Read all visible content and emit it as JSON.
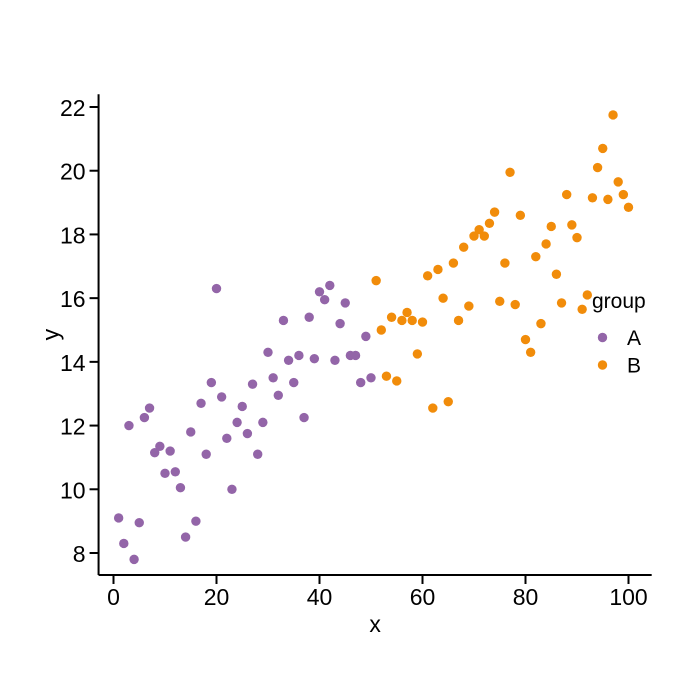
{
  "chart_data": {
    "type": "scatter",
    "title": "",
    "xlabel": "x",
    "ylabel": "y",
    "x_ticks": [
      0,
      20,
      40,
      60,
      80,
      100
    ],
    "y_ticks": [
      8,
      10,
      12,
      14,
      16,
      18,
      20,
      22
    ],
    "xlim": [
      -2.9,
      104.5
    ],
    "ylim": [
      7.31,
      22.4
    ],
    "grid": false,
    "background": "#ffffff",
    "axis_color": "#000000",
    "text_color": "#000000",
    "legend": {
      "title": "group",
      "position": "inside-right-middle"
    },
    "series": [
      {
        "name": "A",
        "color": "#9365a8",
        "points": [
          [
            1,
            9.1
          ],
          [
            2,
            8.3
          ],
          [
            3,
            12.0
          ],
          [
            4,
            7.8
          ],
          [
            5,
            8.95
          ],
          [
            6,
            12.25
          ],
          [
            7,
            12.55
          ],
          [
            8,
            11.15
          ],
          [
            9,
            11.35
          ],
          [
            10,
            10.5
          ],
          [
            11,
            11.2
          ],
          [
            12,
            10.55
          ],
          [
            13,
            10.05
          ],
          [
            14,
            8.5
          ],
          [
            15,
            11.8
          ],
          [
            16,
            9.0
          ],
          [
            17,
            12.7
          ],
          [
            18,
            11.1
          ],
          [
            19,
            13.35
          ],
          [
            20,
            16.3
          ],
          [
            21,
            12.9
          ],
          [
            22,
            11.6
          ],
          [
            23,
            10.0
          ],
          [
            24,
            12.1
          ],
          [
            25,
            12.6
          ],
          [
            26,
            11.75
          ],
          [
            27,
            13.3
          ],
          [
            28,
            11.1
          ],
          [
            29,
            12.1
          ],
          [
            30,
            14.3
          ],
          [
            31,
            13.5
          ],
          [
            32,
            12.95
          ],
          [
            33,
            15.3
          ],
          [
            34,
            14.05
          ],
          [
            35,
            13.35
          ],
          [
            36,
            14.2
          ],
          [
            37,
            12.25
          ],
          [
            38,
            15.4
          ],
          [
            39,
            14.1
          ],
          [
            40,
            16.2
          ],
          [
            41,
            15.95
          ],
          [
            42,
            16.4
          ],
          [
            43,
            14.05
          ],
          [
            44,
            15.2
          ],
          [
            45,
            15.85
          ],
          [
            46,
            14.2
          ],
          [
            47,
            14.2
          ],
          [
            48,
            13.35
          ],
          [
            49,
            14.8
          ],
          [
            50,
            13.5
          ]
        ]
      },
      {
        "name": "B",
        "color": "#f18c0a",
        "points": [
          [
            51,
            16.55
          ],
          [
            52,
            15.0
          ],
          [
            53,
            13.55
          ],
          [
            54,
            15.4
          ],
          [
            55,
            13.4
          ],
          [
            56,
            15.3
          ],
          [
            57,
            15.55
          ],
          [
            58,
            15.3
          ],
          [
            59,
            14.25
          ],
          [
            60,
            15.25
          ],
          [
            61,
            16.7
          ],
          [
            62,
            12.55
          ],
          [
            63,
            16.9
          ],
          [
            64,
            16.0
          ],
          [
            65,
            12.75
          ],
          [
            66,
            17.1
          ],
          [
            67,
            15.3
          ],
          [
            68,
            17.6
          ],
          [
            69,
            15.75
          ],
          [
            70,
            17.95
          ],
          [
            71,
            18.15
          ],
          [
            72,
            17.95
          ],
          [
            73,
            18.35
          ],
          [
            74,
            18.7
          ],
          [
            75,
            15.9
          ],
          [
            76,
            17.1
          ],
          [
            77,
            19.95
          ],
          [
            78,
            15.8
          ],
          [
            79,
            18.6
          ],
          [
            80,
            14.7
          ],
          [
            81,
            14.3
          ],
          [
            82,
            17.3
          ],
          [
            83,
            15.2
          ],
          [
            84,
            17.7
          ],
          [
            85,
            18.25
          ],
          [
            86,
            16.75
          ],
          [
            87,
            15.85
          ],
          [
            88,
            19.25
          ],
          [
            89,
            18.3
          ],
          [
            90,
            17.9
          ],
          [
            91,
            15.65
          ],
          [
            92,
            16.1
          ],
          [
            93,
            19.15
          ],
          [
            94,
            20.1
          ],
          [
            95,
            20.7
          ],
          [
            96,
            19.1
          ],
          [
            97,
            21.75
          ],
          [
            98,
            19.65
          ],
          [
            99,
            19.25
          ],
          [
            100,
            18.85
          ]
        ]
      }
    ]
  }
}
